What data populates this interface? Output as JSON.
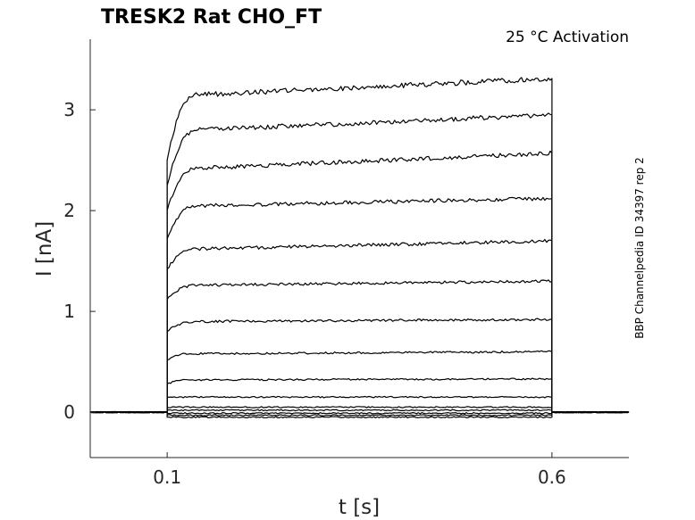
{
  "chart_data": {
    "type": "line",
    "title": "TRESK2  Rat  CHO_FT",
    "annotation": "25 °C  Activation",
    "side_label": "BBP Channelpedia ID 34397 rep 2",
    "xlabel": "t [s]",
    "ylabel": "I [nA]",
    "xlim": [
      0.0,
      0.7
    ],
    "ylim": [
      -0.45,
      3.7
    ],
    "xticks": [
      0.1,
      0.6
    ],
    "xtick_labels": [
      "0.1",
      "0.6"
    ],
    "yticks": [
      0,
      1,
      2,
      3
    ],
    "ytick_labels": [
      "0",
      "1",
      "2",
      "3"
    ],
    "grid": false,
    "legend": "none",
    "pulse": {
      "start": 0.1,
      "end": 0.6
    },
    "series": [
      {
        "values": [
          [
            0.0,
            0.0
          ],
          [
            0.1,
            0.0
          ],
          [
            0.1,
            -0.05
          ],
          [
            0.6,
            -0.05
          ],
          [
            0.6,
            0.0
          ],
          [
            0.7,
            0.0
          ]
        ]
      },
      {
        "values": [
          [
            0.0,
            0.0
          ],
          [
            0.1,
            0.0
          ],
          [
            0.1,
            -0.03
          ],
          [
            0.6,
            -0.03
          ],
          [
            0.6,
            0.0
          ],
          [
            0.7,
            0.0
          ]
        ]
      },
      {
        "values": [
          [
            0.0,
            0.0
          ],
          [
            0.1,
            0.0
          ],
          [
            0.1,
            -0.01
          ],
          [
            0.6,
            -0.01
          ],
          [
            0.6,
            0.0
          ],
          [
            0.7,
            0.0
          ]
        ]
      },
      {
        "values": [
          [
            0.0,
            0.0
          ],
          [
            0.1,
            0.0
          ],
          [
            0.1,
            0.02
          ],
          [
            0.6,
            0.02
          ],
          [
            0.6,
            0.0
          ],
          [
            0.7,
            0.0
          ]
        ]
      },
      {
        "values": [
          [
            0.0,
            0.0
          ],
          [
            0.1,
            0.0
          ],
          [
            0.1,
            0.05
          ],
          [
            0.6,
            0.05
          ],
          [
            0.6,
            0.0
          ],
          [
            0.7,
            0.0
          ]
        ]
      },
      {
        "values": [
          [
            0.0,
            0.0
          ],
          [
            0.1,
            0.0
          ],
          [
            0.1,
            0.15
          ],
          [
            0.6,
            0.15
          ],
          [
            0.6,
            0.0
          ],
          [
            0.7,
            0.0
          ]
        ]
      },
      {
        "values": [
          [
            0.0,
            0.0
          ],
          [
            0.1,
            0.0
          ],
          [
            0.1,
            0.28
          ],
          [
            0.13,
            0.32
          ],
          [
            0.6,
            0.33
          ],
          [
            0.6,
            0.0
          ],
          [
            0.7,
            0.0
          ]
        ]
      },
      {
        "values": [
          [
            0.0,
            0.0
          ],
          [
            0.1,
            0.0
          ],
          [
            0.1,
            0.52
          ],
          [
            0.13,
            0.58
          ],
          [
            0.6,
            0.6
          ],
          [
            0.6,
            0.0
          ],
          [
            0.7,
            0.0
          ]
        ]
      },
      {
        "values": [
          [
            0.0,
            0.0
          ],
          [
            0.1,
            0.0
          ],
          [
            0.1,
            0.8
          ],
          [
            0.14,
            0.9
          ],
          [
            0.6,
            0.92
          ],
          [
            0.6,
            0.0
          ],
          [
            0.7,
            0.0
          ]
        ]
      },
      {
        "values": [
          [
            0.0,
            0.0
          ],
          [
            0.1,
            0.0
          ],
          [
            0.1,
            1.12
          ],
          [
            0.14,
            1.26
          ],
          [
            0.6,
            1.3
          ],
          [
            0.6,
            0.0
          ],
          [
            0.7,
            0.0
          ]
        ]
      },
      {
        "values": [
          [
            0.0,
            0.0
          ],
          [
            0.1,
            0.0
          ],
          [
            0.1,
            1.42
          ],
          [
            0.14,
            1.62
          ],
          [
            0.6,
            1.7
          ],
          [
            0.6,
            0.0
          ],
          [
            0.7,
            0.0
          ]
        ]
      },
      {
        "values": [
          [
            0.0,
            0.0
          ],
          [
            0.1,
            0.0
          ],
          [
            0.1,
            1.72
          ],
          [
            0.14,
            2.05
          ],
          [
            0.6,
            2.12
          ],
          [
            0.6,
            0.0
          ],
          [
            0.7,
            0.0
          ]
        ]
      },
      {
        "values": [
          [
            0.0,
            0.0
          ],
          [
            0.1,
            0.0
          ],
          [
            0.1,
            2.0
          ],
          [
            0.14,
            2.42
          ],
          [
            0.6,
            2.57
          ],
          [
            0.6,
            0.0
          ],
          [
            0.7,
            0.0
          ]
        ]
      },
      {
        "values": [
          [
            0.0,
            0.0
          ],
          [
            0.1,
            0.0
          ],
          [
            0.1,
            2.25
          ],
          [
            0.14,
            2.8
          ],
          [
            0.6,
            2.95
          ],
          [
            0.6,
            0.0
          ],
          [
            0.7,
            0.0
          ]
        ]
      },
      {
        "values": [
          [
            0.0,
            0.0
          ],
          [
            0.1,
            0.0
          ],
          [
            0.1,
            2.5
          ],
          [
            0.14,
            3.15
          ],
          [
            0.6,
            3.31
          ],
          [
            0.6,
            0.0
          ],
          [
            0.7,
            0.0
          ]
        ]
      }
    ]
  }
}
